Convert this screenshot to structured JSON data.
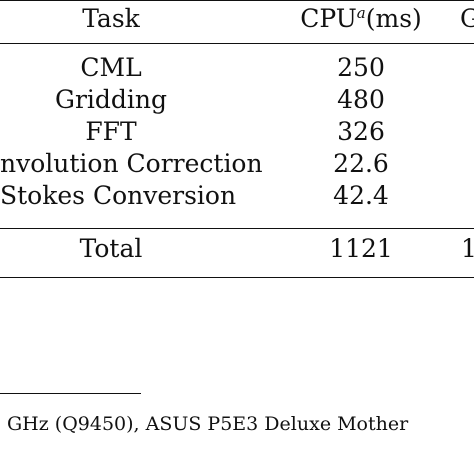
{
  "table": {
    "headers": {
      "task": "Task",
      "cpu_prefix": "CPU",
      "cpu_sup": "a",
      "cpu_suffix": "(ms)",
      "third_partial": "G"
    },
    "rows": [
      {
        "task": "CML",
        "cpu": "250"
      },
      {
        "task": "Gridding",
        "cpu": "480"
      },
      {
        "task": "FFT",
        "cpu": "326"
      },
      {
        "task": "nvolution Correction",
        "cpu": "22.6"
      },
      {
        "task": "Stokes Conversion",
        "cpu": "42.4"
      }
    ],
    "total": {
      "task": "Total",
      "cpu": "1121",
      "third_partial": "1"
    }
  },
  "footnote": {
    "text": "GHz (Q9450), ASUS P5E3 Deluxe Mother"
  }
}
